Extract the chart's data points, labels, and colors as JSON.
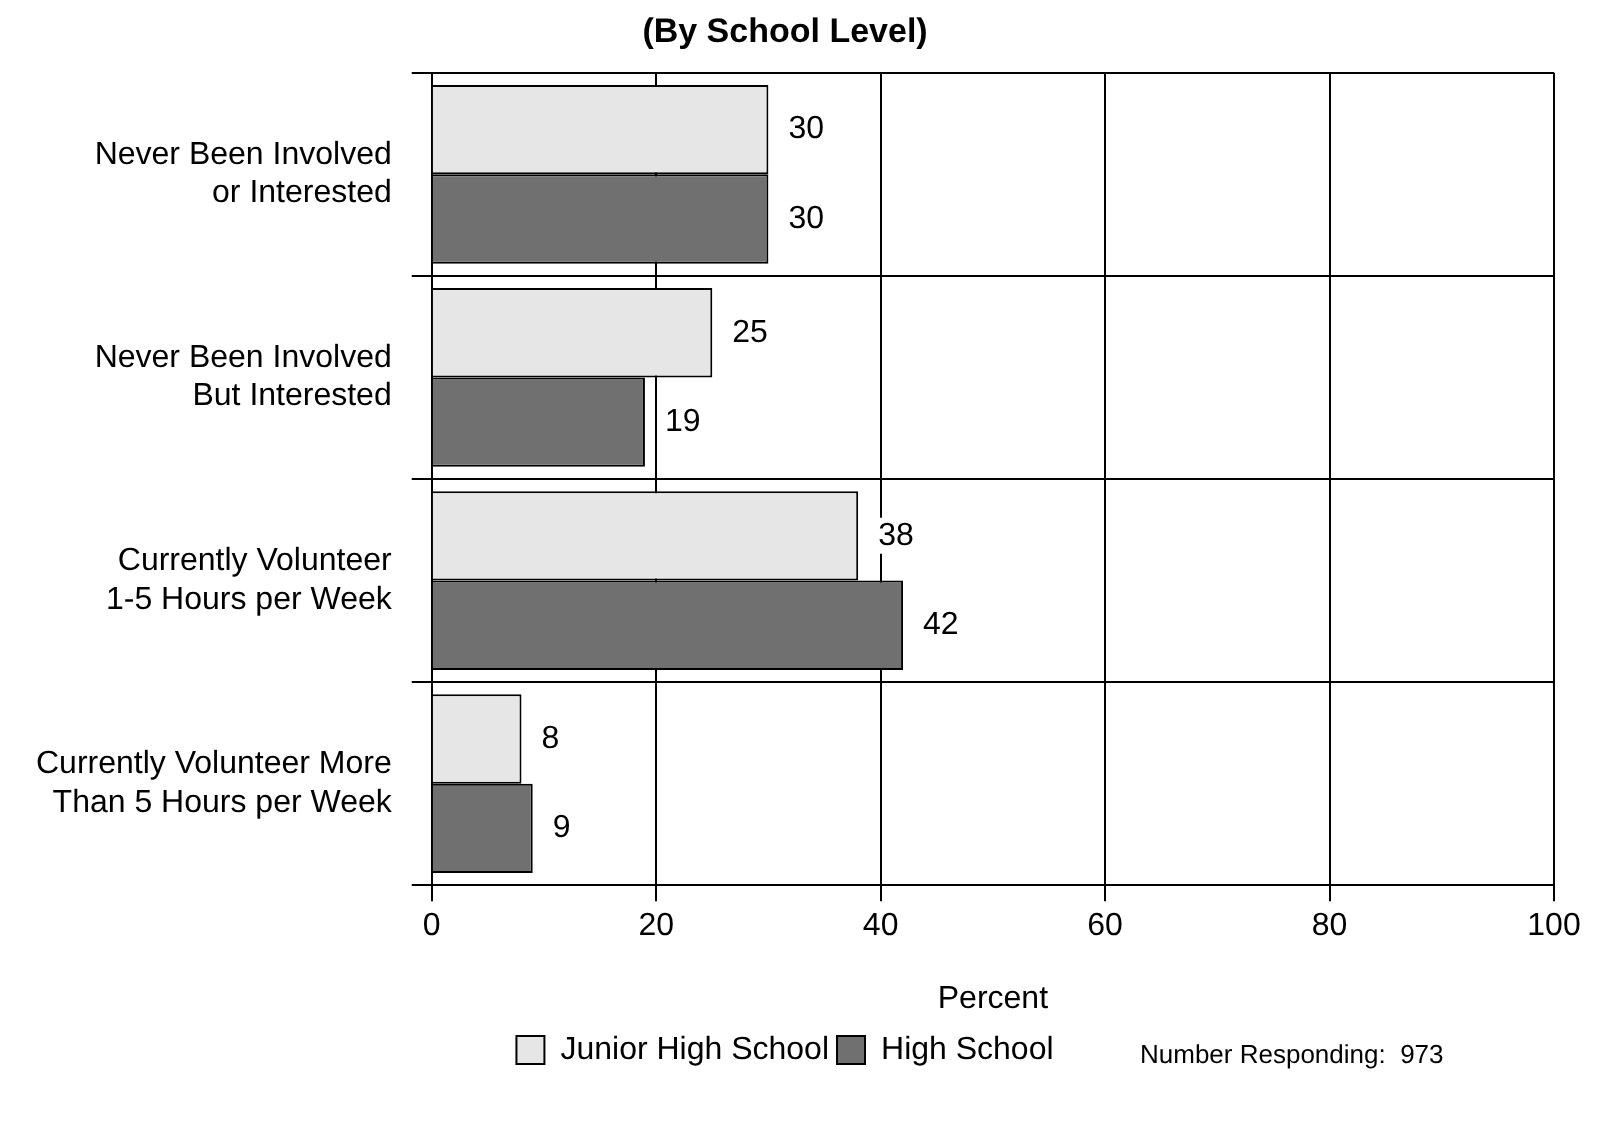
{
  "chart_data": {
    "type": "bar",
    "orientation": "horizontal",
    "title": "(By School Level)",
    "xlabel": "Percent",
    "categories": [
      "Never Been Involved\nor Interested",
      "Never Been Involved\nBut Interested",
      "Currently Volunteer\n1-5 Hours per Week",
      "Currently Volunteer More\nThan 5 Hours per Week"
    ],
    "series": [
      {
        "name": "Junior High School",
        "color": "#e6e6e6",
        "values": [
          30,
          25,
          38,
          8
        ]
      },
      {
        "name": "High School",
        "color": "#707070",
        "values": [
          30,
          19,
          42,
          9
        ]
      }
    ],
    "xlim": [
      0,
      100
    ],
    "xticks": [
      0,
      20,
      40,
      60,
      80,
      100
    ],
    "grid": true,
    "legend": "bottom",
    "data_labels": true,
    "annotations": [
      "Number Responding:  973"
    ]
  }
}
